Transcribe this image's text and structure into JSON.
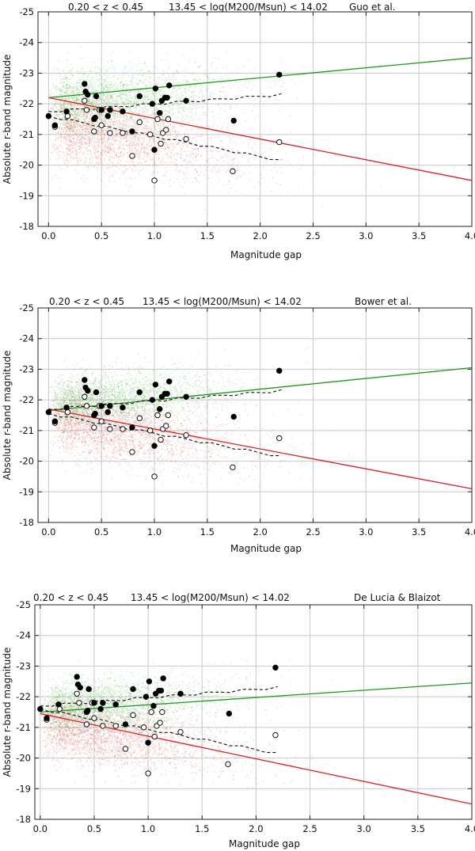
{
  "chart_data": [
    {
      "type": "scatter",
      "title_left": "0.20 < z < 0.45",
      "title_mid": "13.45 < log(M200/Msun) < 14.02",
      "title_right": "Guo et al.",
      "xlabel": "Magnitude gap",
      "ylabel": "Absolute r-band magnitude",
      "xlim": [
        -0.1,
        4.0
      ],
      "ylim": [
        -25,
        -18
      ],
      "grid": true,
      "x_ticks": [
        "0.0",
        "0.5",
        "1.0",
        "1.5",
        "2.0",
        "2.5",
        "3.0",
        "3.5",
        "4.0"
      ],
      "y_ticks": [
        "-25",
        "-24",
        "-23",
        "-22",
        "-21",
        "-20",
        "-19",
        "-18"
      ],
      "green_fit": {
        "x": [
          0.0,
          4.0
        ],
        "y": [
          -22.2,
          -23.5
        ]
      },
      "red_fit": {
        "x": [
          0.0,
          4.0
        ],
        "y": [
          -22.2,
          -19.5
        ]
      },
      "dashed_upper": {
        "x": [
          0.0,
          2.2
        ],
        "y": [
          -21.75,
          -22.3
        ]
      },
      "dashed_lower": {
        "x": [
          0.0,
          2.2
        ],
        "y": [
          -21.6,
          -20.15
        ]
      },
      "green_cloud": {
        "center": -22.0,
        "spread": 0.5,
        "color": "#39b339"
      },
      "red_cloud": {
        "center": -21.3,
        "spread": 0.6,
        "color": "#e04040"
      }
    },
    {
      "type": "scatter",
      "title_left": "0.20 < z < 0.45",
      "title_mid": "13.45 < log(M200/Msun) < 14.02",
      "title_right": "Bower et al.",
      "xlabel": "Magnitude gap",
      "ylabel": "Absolute r-band magnitude",
      "xlim": [
        -0.1,
        4.0
      ],
      "ylim": [
        -25,
        -18
      ],
      "grid": true,
      "x_ticks": [
        "0.0",
        "0.5",
        "1.0",
        "1.5",
        "2.0",
        "2.5",
        "3.0",
        "3.5",
        "4.0"
      ],
      "y_ticks": [
        "-25",
        "-24",
        "-23",
        "-22",
        "-21",
        "-20",
        "-19",
        "-18"
      ],
      "green_fit": {
        "x": [
          0.0,
          4.0
        ],
        "y": [
          -21.65,
          -23.05
        ]
      },
      "red_fit": {
        "x": [
          0.0,
          4.0
        ],
        "y": [
          -21.7,
          -19.1
        ]
      },
      "dashed_upper": {
        "x": [
          0.0,
          2.2
        ],
        "y": [
          -21.7,
          -22.3
        ]
      },
      "dashed_lower": {
        "x": [
          0.0,
          2.2
        ],
        "y": [
          -21.55,
          -20.15
        ]
      },
      "green_cloud": {
        "center": -21.9,
        "spread": 0.45,
        "color": "#39b339"
      },
      "red_cloud": {
        "center": -21.4,
        "spread": 0.55,
        "color": "#e04040"
      }
    },
    {
      "type": "scatter",
      "title_left": "0.20 < z < 0.45",
      "title_mid": "13.45 < log(M200/Msun) < 14.02",
      "title_right": "De Lucia & Blaizot",
      "xlabel": "Magnitude gap",
      "ylabel": "Absolute r-band magnitude",
      "xlim": [
        -0.05,
        4.0
      ],
      "ylim": [
        -25,
        -18
      ],
      "grid": true,
      "x_ticks": [
        "0.0",
        "0.5",
        "1.0",
        "1.5",
        "2.0",
        "2.5",
        "3.0",
        "3.5",
        "4.0"
      ],
      "y_ticks": [
        "-25",
        "-24",
        "-23",
        "-22",
        "-21",
        "-20",
        "-19",
        "-18"
      ],
      "green_fit": {
        "x": [
          0.0,
          4.0
        ],
        "y": [
          -21.5,
          -22.45
        ]
      },
      "red_fit": {
        "x": [
          0.0,
          4.0
        ],
        "y": [
          -21.45,
          -18.5
        ]
      },
      "dashed_upper": {
        "x": [
          0.0,
          2.2
        ],
        "y": [
          -21.7,
          -22.3
        ]
      },
      "dashed_lower": {
        "x": [
          0.0,
          2.2
        ],
        "y": [
          -21.6,
          -20.15
        ]
      },
      "green_cloud": {
        "center": -21.6,
        "spread": 0.45,
        "color": "#39b339"
      },
      "red_cloud": {
        "center": -21.1,
        "spread": 0.5,
        "color": "#e04040"
      }
    }
  ],
  "observed_filled": {
    "x": [
      0.0,
      0.06,
      0.17,
      0.34,
      0.35,
      0.37,
      0.43,
      0.44,
      0.45,
      0.5,
      0.56,
      0.58,
      0.7,
      0.79,
      0.86,
      0.98,
      1.0,
      1.01,
      1.05,
      1.07,
      1.1,
      1.12,
      1.14,
      1.3,
      1.75,
      2.18
    ],
    "y": [
      -21.6,
      -21.3,
      -21.75,
      -22.65,
      -22.4,
      -22.3,
      -21.5,
      -21.55,
      -22.25,
      -21.8,
      -21.6,
      -21.8,
      -21.75,
      -21.1,
      -22.25,
      -22.0,
      -20.5,
      -22.5,
      -21.7,
      -22.1,
      -22.2,
      -22.2,
      -22.6,
      -22.1,
      -21.45,
      -22.95
    ]
  },
  "observed_open": {
    "x": [
      0.06,
      0.18,
      0.34,
      0.36,
      0.43,
      0.48,
      0.5,
      0.58,
      0.7,
      0.79,
      0.86,
      0.96,
      1.0,
      1.03,
      1.06,
      1.08,
      1.11,
      1.13,
      1.3,
      1.74,
      2.18
    ],
    "y": [
      -21.25,
      -21.6,
      -22.1,
      -21.8,
      -21.1,
      -21.8,
      -21.3,
      -21.05,
      -21.05,
      -20.3,
      -21.4,
      -21.0,
      -19.5,
      -21.5,
      -20.7,
      -21.05,
      -21.15,
      -21.5,
      -20.85,
      -19.8,
      -20.75
    ]
  }
}
